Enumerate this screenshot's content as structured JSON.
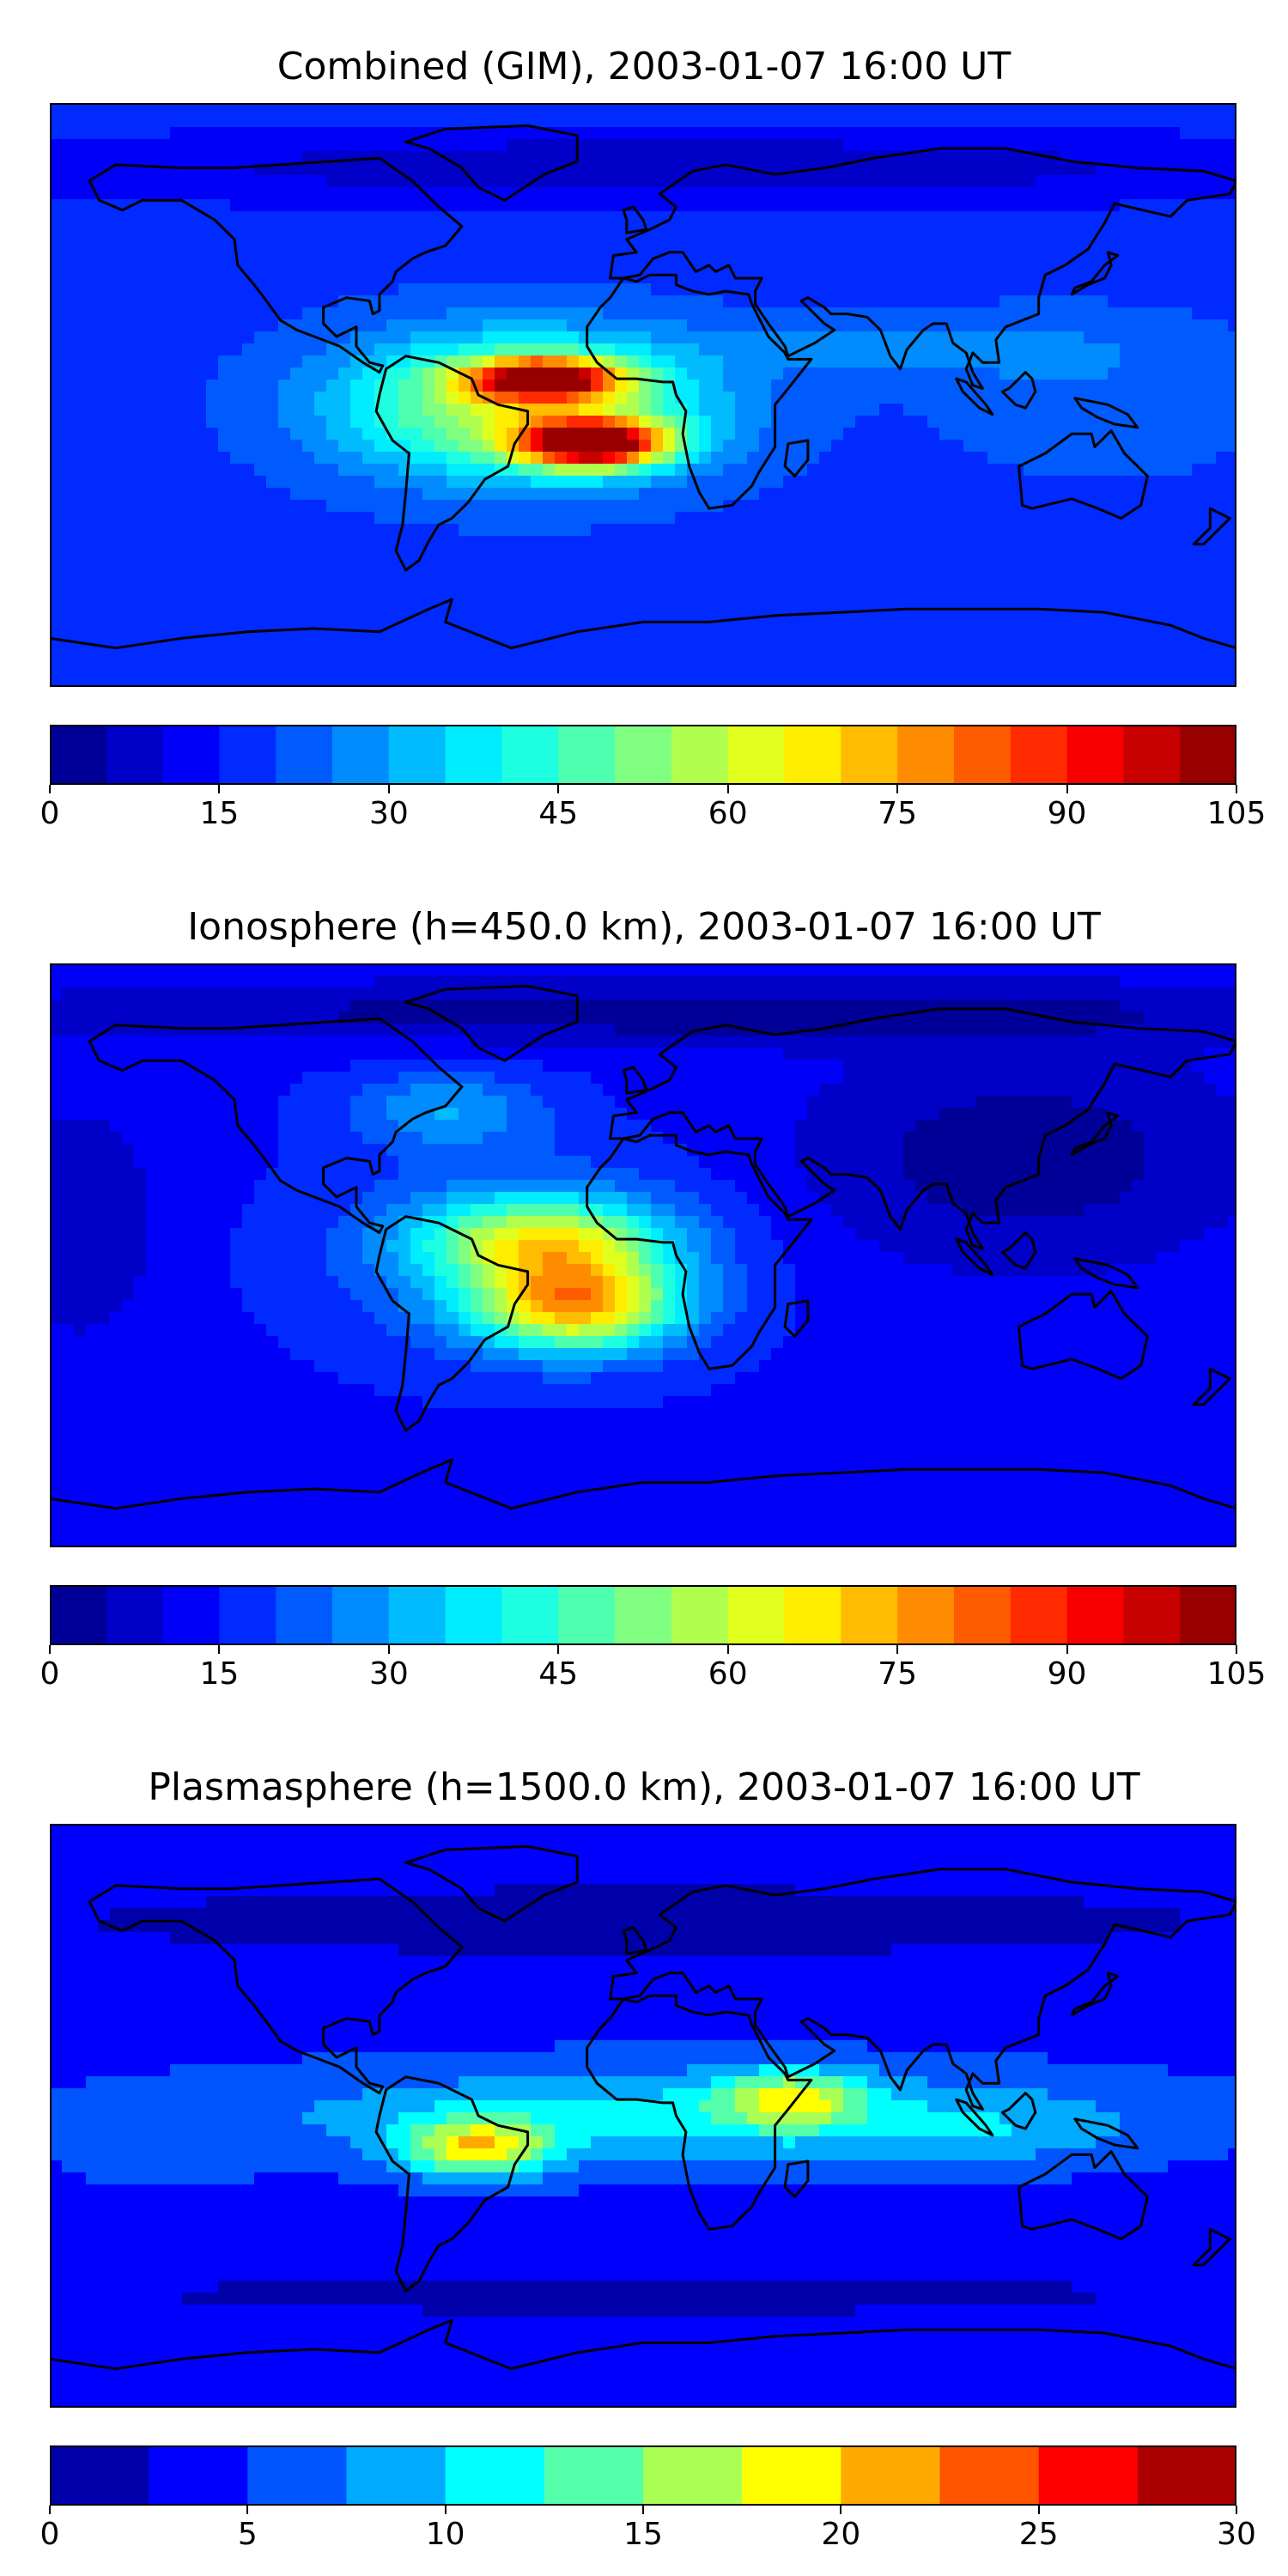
{
  "chart_data": [
    {
      "type": "heatmap",
      "title": "Combined (GIM), 2003-01-07 16:00 UT",
      "colorbar": {
        "min": 0,
        "max": 105,
        "step": 5,
        "ticks": [
          0,
          15,
          30,
          45,
          60,
          75,
          90,
          105
        ]
      },
      "background_value": 18,
      "features": [
        {
          "lon": -30,
          "lat": 5,
          "value": 72,
          "rlon": 22,
          "rlat": 6
        },
        {
          "lon": -15,
          "lat": -15,
          "value": 82,
          "rlon": 22,
          "rlat": 7
        },
        {
          "lon": -35,
          "lat": -5,
          "value": 30,
          "rlon": 55,
          "rlat": 22
        },
        {
          "lon": -40,
          "lat": 0,
          "value": 14,
          "rlon": 55,
          "rlat": 22
        },
        {
          "lon": 80,
          "lat": 15,
          "value": 8,
          "rlon": 60,
          "rlat": 10
        },
        {
          "lon": 140,
          "lat": 0,
          "value": 6,
          "rlon": 50,
          "rlat": 25
        },
        {
          "lon": 10,
          "lat": 70,
          "value": -12,
          "rlon": 200,
          "rlat": 12
        }
      ]
    },
    {
      "type": "heatmap",
      "title": "Ionosphere  (h=450.0 km), 2003-01-07 16:00 UT",
      "colorbar": {
        "min": 0,
        "max": 105,
        "step": 5,
        "ticks": [
          0,
          15,
          30,
          45,
          60,
          75,
          90,
          105
        ]
      },
      "background_value": 14,
      "features": [
        {
          "lon": -20,
          "lat": -15,
          "value": 52,
          "rlon": 30,
          "rlat": 14
        },
        {
          "lon": -30,
          "lat": 5,
          "value": 34,
          "rlon": 35,
          "rlat": 12
        },
        {
          "lon": -35,
          "lat": 0,
          "value": 18,
          "rlon": 55,
          "rlat": 28
        },
        {
          "lon": -60,
          "lat": 45,
          "value": 15,
          "rlon": 30,
          "rlat": 12
        },
        {
          "lon": 115,
          "lat": 30,
          "value": -12,
          "rlon": 70,
          "rlat": 35
        },
        {
          "lon": -170,
          "lat": 10,
          "value": -8,
          "rlon": 25,
          "rlat": 40
        },
        {
          "lon": 10,
          "lat": 75,
          "value": -12,
          "rlon": 200,
          "rlat": 10
        }
      ]
    },
    {
      "type": "heatmap",
      "title": "Plasmasphere (h=1500.0 km), 2003-01-07 16:00 UT",
      "colorbar": {
        "min": 0,
        "max": 30,
        "step": 2.5,
        "ticks": [
          0,
          5,
          10,
          15,
          20,
          25,
          30
        ]
      },
      "background_value": 4,
      "features": [
        {
          "lon": -50,
          "lat": -10,
          "value": 13,
          "rlon": 22,
          "rlat": 9
        },
        {
          "lon": 45,
          "lat": 5,
          "value": 10,
          "rlon": 22,
          "rlat": 9
        },
        {
          "lon": 10,
          "lat": 0,
          "value": 6.5,
          "rlon": 140,
          "rlat": 16
        },
        {
          "lon": 110,
          "lat": -5,
          "value": 2.5,
          "rlon": 40,
          "rlat": 10
        },
        {
          "lon": -150,
          "lat": -10,
          "value": 1.5,
          "rlon": 30,
          "rlat": 15
        },
        {
          "lon": 0,
          "lat": 60,
          "value": -3,
          "rlon": 200,
          "rlat": 12
        },
        {
          "lon": 0,
          "lat": -55,
          "value": -2.5,
          "rlon": 200,
          "rlat": 8
        }
      ]
    }
  ]
}
